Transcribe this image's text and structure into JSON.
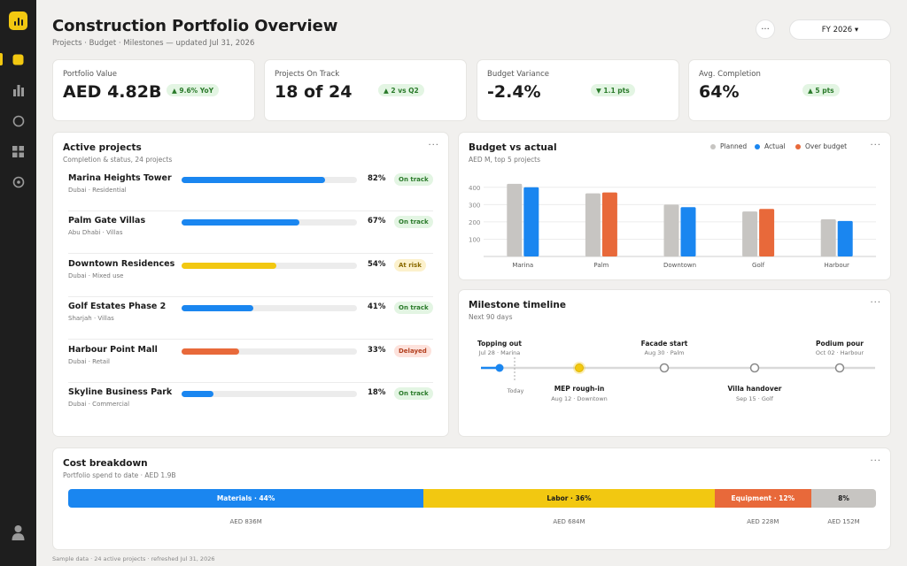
{
  "header": {
    "title": "Construction Portfolio Overview",
    "subtitle": "Projects · Budget · Milestones — updated Jul 31, 2026",
    "more_label": "···",
    "period": "FY 2026 ▾"
  },
  "sidebar": {
    "items": [
      "dashboard-icon",
      "bar-chart-icon",
      "circle-icon",
      "grid-icon",
      "target-icon"
    ],
    "bottom": "user-icon"
  },
  "kpis": [
    {
      "label": "Portfolio Value",
      "value": "AED 4.82B",
      "delta": "▲ 9.6% YoY"
    },
    {
      "label": "Projects On Track",
      "value": "18 of 24",
      "delta": "▲ 2 vs Q2"
    },
    {
      "label": "Budget Variance",
      "value": "-2.4%",
      "delta": "▼ 1.1 pts"
    },
    {
      "label": "Avg. Completion",
      "value": "64%",
      "delta": "▲ 5 pts"
    }
  ],
  "projects": {
    "title": "Active projects",
    "subtitle": "Completion & status, 24 projects",
    "more": "···",
    "items": [
      {
        "name": "Marina Heights Tower",
        "location": "Dubai · Residential",
        "pct_label": "82%",
        "progress": 0.82,
        "color": "#1a86f0",
        "status": "On track",
        "status_kind": "ok"
      },
      {
        "name": "Palm Gate Villas",
        "location": "Abu Dhabi · Villas",
        "pct_label": "67%",
        "progress": 0.67,
        "color": "#1a86f0",
        "status": "On track",
        "status_kind": "ok"
      },
      {
        "name": "Downtown Residences",
        "location": "Dubai · Mixed use",
        "pct_label": "54%",
        "progress": 0.54,
        "color": "#f2c811",
        "status": "At risk",
        "status_kind": "risk"
      },
      {
        "name": "Golf Estates Phase 2",
        "location": "Sharjah · Villas",
        "pct_label": "41%",
        "progress": 0.41,
        "color": "#1a86f0",
        "status": "On track",
        "status_kind": "ok"
      },
      {
        "name": "Harbour Point Mall",
        "location": "Dubai · Retail",
        "pct_label": "33%",
        "progress": 0.33,
        "color": "#e8693a",
        "status": "Delayed",
        "status_kind": "del"
      },
      {
        "name": "Skyline Business Park",
        "location": "Dubai · Commercial",
        "pct_label": "18%",
        "progress": 0.18,
        "color": "#1a86f0",
        "status": "On track",
        "status_kind": "ok"
      }
    ]
  },
  "budget": {
    "title": "Budget vs actual",
    "subtitle": "AED M, top 5 projects",
    "more": "···",
    "legend": {
      "planned": "Planned",
      "actual": "Actual",
      "over": "Over budget"
    }
  },
  "colors": {
    "planned": "#c7c5c2",
    "actual": "#1a86f0",
    "over": "#e8693a",
    "accent": "#f2c811"
  },
  "chart_data": {
    "type": "bar",
    "categories": [
      "Marina",
      "Palm",
      "Downtown",
      "Golf",
      "Harbour"
    ],
    "series": [
      {
        "name": "Planned",
        "values": [
          420,
          365,
          300,
          260,
          215
        ]
      },
      {
        "name": "Actual",
        "values": [
          400,
          370,
          285,
          275,
          205
        ]
      }
    ],
    "over_budget": [
      false,
      true,
      false,
      true,
      false
    ],
    "yticks": [
      100,
      200,
      300,
      400
    ],
    "ylim": [
      0,
      450
    ],
    "grid": true,
    "legend_position": "top-right"
  },
  "milestones": {
    "title": "Milestone timeline",
    "subtitle": "Next 90 days",
    "more": "···",
    "today": "Today",
    "items": [
      {
        "name": "Topping out",
        "detail": "Jul 28 · Marina",
        "state": "done",
        "label_pos": "above"
      },
      {
        "name": "MEP rough-in",
        "detail": "Aug 12 · Downtown",
        "state": "current",
        "label_pos": "below"
      },
      {
        "name": "Facade start",
        "detail": "Aug 30 · Palm",
        "state": "upcoming",
        "label_pos": "above"
      },
      {
        "name": "Villa handover",
        "detail": "Sep 15 · Golf",
        "state": "upcoming",
        "label_pos": "below"
      },
      {
        "name": "Podium pour",
        "detail": "Oct 02 · Harbour",
        "state": "upcoming",
        "label_pos": "above"
      }
    ]
  },
  "costs": {
    "title": "Cost breakdown",
    "subtitle": "Portfolio spend to date · AED 1.9B",
    "more": "···",
    "segments": [
      {
        "label": "Materials · 44%",
        "share": 0.44,
        "amount": "AED 836M",
        "color": "#1a86f0",
        "text_color": "#ffffff"
      },
      {
        "label": "Labor · 36%",
        "share": 0.36,
        "amount": "AED 684M",
        "color": "#f2c811",
        "text_color": "#1c1c1c"
      },
      {
        "label": "Equipment · 12%",
        "share": 0.12,
        "amount": "AED 228M",
        "color": "#e8693a",
        "text_color": "#ffffff"
      },
      {
        "label": "8%",
        "share": 0.08,
        "amount": "AED 152M",
        "color": "#c7c5c2",
        "text_color": "#1c1c1c"
      }
    ]
  },
  "footer": "Sample data · 24 active projects · refreshed Jul 31, 2026"
}
